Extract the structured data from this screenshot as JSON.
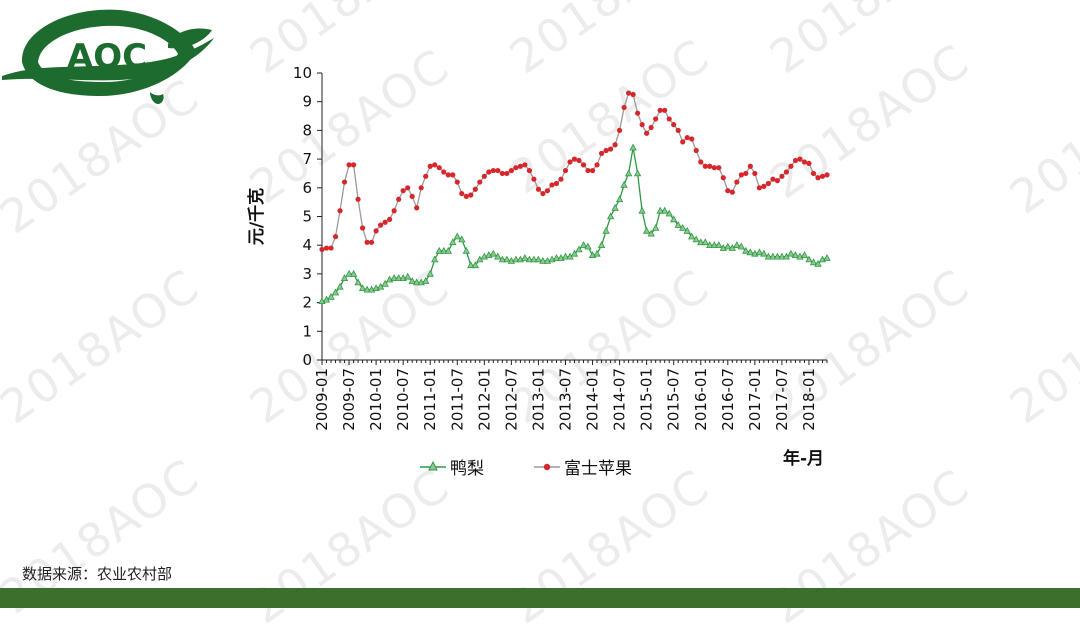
{
  "logo": {
    "text": "AOC",
    "color": "#1d6b2f"
  },
  "watermark": "2018AOC",
  "source": {
    "label": "数据来源：农业农村部"
  },
  "chart_data": {
    "type": "line",
    "ylabel": "元/千克",
    "xlabel": "年-月",
    "ylim": [
      0,
      10
    ],
    "yticks": [
      0,
      1,
      2,
      3,
      4,
      5,
      6,
      7,
      8,
      9,
      10
    ],
    "xtick_labels": [
      "2009-01",
      "2009-07",
      "2010-01",
      "2010-07",
      "2011-01",
      "2011-07",
      "2012-01",
      "2012-07",
      "2013-01",
      "2013-07",
      "2014-01",
      "2014-07",
      "2015-01",
      "2015-07",
      "2016-01",
      "2016-07",
      "2017-01",
      "2017-07",
      "2018-01"
    ],
    "x_start": "2009-01",
    "x_end": "2018-01",
    "legend_position": "bottom",
    "grid": false,
    "series": [
      {
        "name": "鸭梨",
        "color": "#2e9a45",
        "marker": "triangle",
        "values": [
          2.05,
          2.1,
          2.2,
          2.35,
          2.55,
          2.85,
          3.0,
          3.0,
          2.7,
          2.5,
          2.45,
          2.45,
          2.5,
          2.55,
          2.65,
          2.8,
          2.85,
          2.85,
          2.85,
          2.9,
          2.75,
          2.7,
          2.7,
          2.75,
          3.0,
          3.5,
          3.8,
          3.8,
          3.8,
          4.1,
          4.3,
          4.2,
          3.8,
          3.3,
          3.3,
          3.5,
          3.6,
          3.65,
          3.7,
          3.6,
          3.5,
          3.5,
          3.45,
          3.5,
          3.5,
          3.55,
          3.5,
          3.5,
          3.5,
          3.45,
          3.45,
          3.5,
          3.55,
          3.55,
          3.6,
          3.6,
          3.7,
          3.85,
          4.0,
          3.95,
          3.65,
          3.7,
          4.0,
          4.5,
          5.0,
          5.3,
          5.6,
          6.1,
          6.5,
          7.4,
          6.5,
          5.2,
          4.5,
          4.4,
          4.6,
          5.2,
          5.2,
          5.1,
          4.9,
          4.7,
          4.6,
          4.5,
          4.3,
          4.2,
          4.1,
          4.1,
          4.0,
          4.0,
          4.0,
          3.9,
          3.95,
          3.9,
          4.0,
          3.95,
          3.8,
          3.75,
          3.7,
          3.75,
          3.7,
          3.6,
          3.6,
          3.6,
          3.6,
          3.6,
          3.7,
          3.65,
          3.6,
          3.65,
          3.5,
          3.4,
          3.35,
          3.5,
          3.55
        ]
      },
      {
        "name": "富士苹果",
        "color": "#d6282c",
        "line_color": "#9a9a9a",
        "marker": "circle",
        "values": [
          3.85,
          3.9,
          3.9,
          4.3,
          5.2,
          6.2,
          6.8,
          6.8,
          5.6,
          4.6,
          4.1,
          4.1,
          4.5,
          4.7,
          4.8,
          4.9,
          5.2,
          5.6,
          5.9,
          6.0,
          5.7,
          5.3,
          6.0,
          6.4,
          6.75,
          6.8,
          6.7,
          6.55,
          6.45,
          6.45,
          6.2,
          5.8,
          5.7,
          5.75,
          5.95,
          6.2,
          6.4,
          6.55,
          6.6,
          6.6,
          6.5,
          6.5,
          6.6,
          6.7,
          6.75,
          6.8,
          6.6,
          6.3,
          5.95,
          5.8,
          5.9,
          6.1,
          6.15,
          6.3,
          6.6,
          6.9,
          7.0,
          6.95,
          6.8,
          6.6,
          6.6,
          6.8,
          7.2,
          7.3,
          7.35,
          7.5,
          8.0,
          8.8,
          9.3,
          9.25,
          8.6,
          8.2,
          7.9,
          8.1,
          8.4,
          8.7,
          8.7,
          8.4,
          8.2,
          8.0,
          7.6,
          7.75,
          7.7,
          7.3,
          6.9,
          6.75,
          6.75,
          6.7,
          6.7,
          6.35,
          5.9,
          5.85,
          6.2,
          6.45,
          6.5,
          6.75,
          6.5,
          6.0,
          6.05,
          6.15,
          6.3,
          6.25,
          6.4,
          6.55,
          6.75,
          6.95,
          7.0,
          6.9,
          6.85,
          6.5,
          6.35,
          6.4,
          6.45
        ]
      }
    ]
  }
}
